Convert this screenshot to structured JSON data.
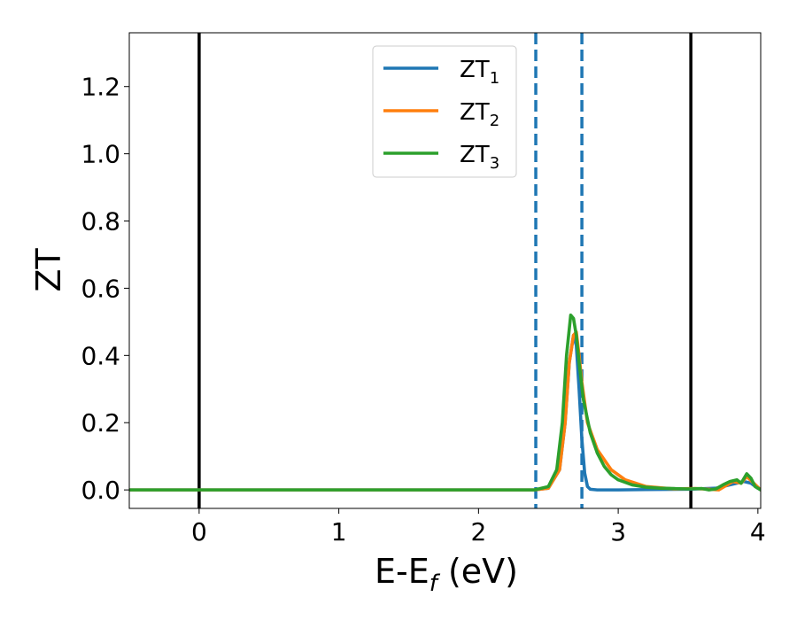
{
  "chart_data": {
    "type": "line",
    "xlabel": {
      "main": "E-E",
      "sub": "f",
      "suffix": " (eV)"
    },
    "ylabel": "ZT",
    "xlim": [
      -0.5,
      4.02
    ],
    "ylim": [
      -0.055,
      1.36
    ],
    "xticks": [
      0,
      1,
      2,
      3,
      4
    ],
    "yticks": [
      0.0,
      0.2,
      0.4,
      0.6,
      0.8,
      1.0,
      1.2
    ],
    "xtick_labels": [
      "0",
      "1",
      "2",
      "3",
      "4"
    ],
    "ytick_labels": [
      "0.0",
      "0.2",
      "0.4",
      "0.6",
      "0.8",
      "1.0",
      "1.2"
    ],
    "grid": false,
    "legend_position": "top-center",
    "vlines": [
      {
        "x": 0.0,
        "style": "solid",
        "color": "#000000"
      },
      {
        "x": 3.52,
        "style": "solid",
        "color": "#000000"
      },
      {
        "x": 2.41,
        "style": "dashed",
        "color": "#1f77b4"
      },
      {
        "x": 2.74,
        "style": "dashed",
        "color": "#1f77b4"
      }
    ],
    "series": [
      {
        "name": "ZT",
        "subscript": "1",
        "color": "#1f77b4",
        "x": [
          -0.5,
          2.4,
          2.5,
          2.58,
          2.62,
          2.65,
          2.68,
          2.7,
          2.72,
          2.74,
          2.76,
          2.78,
          2.8,
          2.85,
          3.0,
          3.2,
          3.5,
          3.7,
          3.8,
          3.85,
          3.9,
          3.95,
          4.0,
          4.02
        ],
        "y": [
          0.0,
          0.0,
          0.005,
          0.06,
          0.2,
          0.38,
          0.46,
          0.43,
          0.3,
          0.15,
          0.05,
          0.01,
          0.002,
          0.0,
          0.0,
          0.001,
          0.002,
          0.005,
          0.015,
          0.02,
          0.025,
          0.02,
          0.005,
          0.0
        ]
      },
      {
        "name": "ZT",
        "subscript": "2",
        "color": "#ff7f0e",
        "x": [
          -0.5,
          2.4,
          2.5,
          2.58,
          2.62,
          2.65,
          2.68,
          2.7,
          2.72,
          2.74,
          2.78,
          2.85,
          2.95,
          3.05,
          3.2,
          3.4,
          3.55,
          3.65,
          3.72,
          3.78,
          3.82,
          3.88,
          3.92,
          3.97,
          4.02
        ],
        "y": [
          0.0,
          0.0,
          0.005,
          0.06,
          0.2,
          0.38,
          0.46,
          0.47,
          0.4,
          0.32,
          0.2,
          0.12,
          0.06,
          0.03,
          0.01,
          0.003,
          0.004,
          0.002,
          0.0,
          0.015,
          0.025,
          0.02,
          0.04,
          0.02,
          0.0
        ]
      },
      {
        "name": "ZT",
        "subscript": "3",
        "color": "#2ca02c",
        "x": [
          -0.5,
          2.4,
          2.5,
          2.56,
          2.6,
          2.63,
          2.66,
          2.68,
          2.7,
          2.72,
          2.75,
          2.8,
          2.85,
          2.9,
          2.95,
          3.0,
          3.1,
          3.2,
          3.3,
          3.4,
          3.5,
          3.6,
          3.65,
          3.7,
          3.75,
          3.8,
          3.85,
          3.88,
          3.92,
          3.95,
          3.98,
          4.02
        ],
        "y": [
          0.0,
          0.0,
          0.01,
          0.06,
          0.2,
          0.4,
          0.52,
          0.51,
          0.46,
          0.38,
          0.27,
          0.17,
          0.11,
          0.07,
          0.045,
          0.03,
          0.015,
          0.008,
          0.005,
          0.004,
          0.003,
          0.004,
          0.0,
          0.003,
          0.015,
          0.025,
          0.03,
          0.02,
          0.048,
          0.035,
          0.01,
          0.0
        ]
      }
    ]
  }
}
